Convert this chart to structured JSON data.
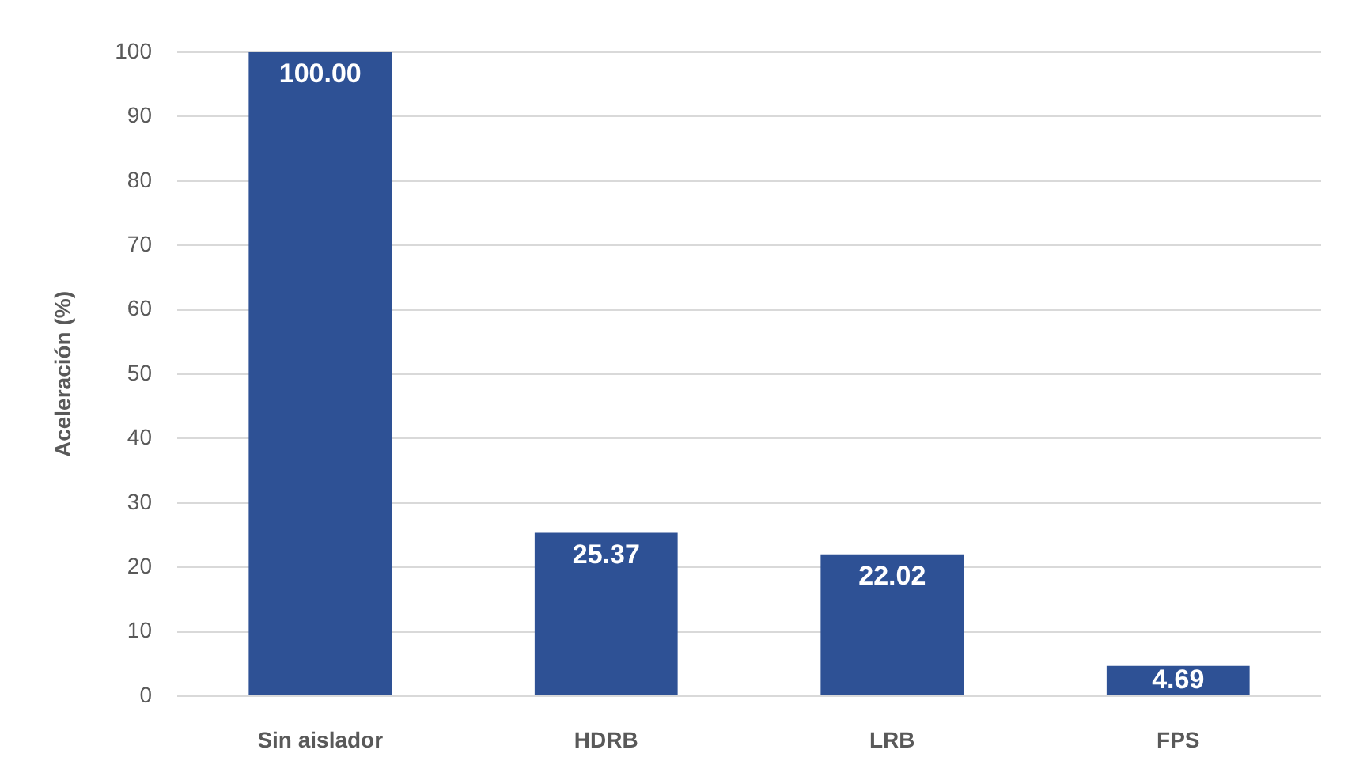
{
  "chart_data": {
    "type": "bar",
    "ylabel": "Aceleración (%)",
    "categories": [
      "Sin aislador",
      "HDRB",
      "LRB",
      "FPS"
    ],
    "values": [
      100,
      25.37,
      22.02,
      4.69
    ],
    "value_labels": [
      "100.00",
      "25.37",
      "22.02",
      "4.69"
    ],
    "color": "#2e5195",
    "ylim": [
      0,
      100
    ],
    "yticks": [
      0,
      10,
      20,
      30,
      40,
      50,
      60,
      70,
      80,
      90,
      100
    ],
    "grid": "y",
    "legend": false
  }
}
